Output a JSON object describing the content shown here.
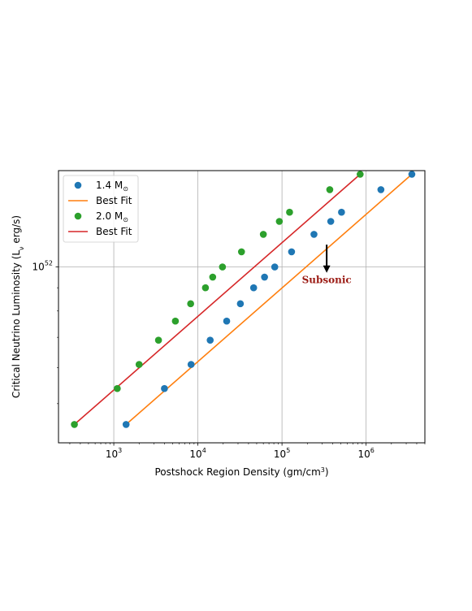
{
  "chart_data": {
    "type": "scatter",
    "title": "",
    "xlabel": {
      "main": "Postshock Region Density (gm/cm",
      "sup": "3",
      "tail": ")"
    },
    "ylabel": {
      "main": "Critical Neutrino Luminosity (L",
      "sub": "ν",
      "tail": " erg/s)"
    },
    "xscale": "log",
    "yscale": "log",
    "xlim": [
      220,
      5000000
    ],
    "ylim": [
      4.1e+51,
      1.63e+52
    ],
    "xticks": [
      {
        "value": 1000,
        "base": "10",
        "exp": "3"
      },
      {
        "value": 10000,
        "base": "10",
        "exp": "4"
      },
      {
        "value": 100000,
        "base": "10",
        "exp": "5"
      },
      {
        "value": 1000000,
        "base": "10",
        "exp": "6"
      }
    ],
    "yticks": [
      {
        "value": 1e+52,
        "base": "10",
        "exp": "52"
      }
    ],
    "grid": true,
    "legend_position": "top-left",
    "legend": [
      {
        "label": "1.4 M",
        "sub": "⊙",
        "kind": "marker",
        "color": "#1f77b4"
      },
      {
        "label": "Best Fit",
        "sub": "",
        "kind": "line",
        "color": "#ff7f0e"
      },
      {
        "label": "2.0 M",
        "sub": "⊙",
        "kind": "marker",
        "color": "#2ca02c"
      },
      {
        "label": "Best Fit",
        "sub": "",
        "kind": "line",
        "color": "#d62728"
      }
    ],
    "series": [
      {
        "name": "1.4 M⊙",
        "kind": "scatter",
        "color": "#1f77b4",
        "x": [
          1400,
          4000,
          8300,
          14000,
          22000,
          32000,
          46000,
          62000,
          82000,
          130000,
          240000,
          380000,
          510000,
          1500000,
          3500000
        ],
        "y": [
          4.5e+51,
          5.4e+51,
          6.1e+51,
          6.9e+51,
          7.6e+51,
          8.3e+51,
          9e+51,
          9.5e+51,
          1e+52,
          1.08e+52,
          1.18e+52,
          1.26e+52,
          1.32e+52,
          1.48e+52,
          1.6e+52
        ]
      },
      {
        "name": "Best Fit",
        "kind": "line",
        "color": "#ff7f0e",
        "x": [
          1400,
          3500000
        ],
        "y": [
          4.5e+51,
          1.6e+52
        ]
      },
      {
        "name": "2.0 M⊙",
        "kind": "scatter",
        "color": "#2ca02c",
        "x": [
          340,
          1100,
          2000,
          3400,
          5400,
          8200,
          12300,
          15000,
          19600,
          33000,
          60000,
          93000,
          123000,
          370000,
          850000
        ],
        "y": [
          4.5e+51,
          5.4e+51,
          6.1e+51,
          6.9e+51,
          7.6e+51,
          8.3e+51,
          9e+51,
          9.5e+51,
          1e+52,
          1.08e+52,
          1.18e+52,
          1.26e+52,
          1.32e+52,
          1.48e+52,
          1.6e+52
        ]
      },
      {
        "name": "Best Fit",
        "kind": "line",
        "color": "#d62728",
        "x": [
          340,
          850000
        ],
        "y": [
          4.5e+51,
          1.6e+52
        ]
      }
    ],
    "annotations": [
      {
        "text": "Subsonic",
        "x": 340000,
        "y": 9.6e+51,
        "arrow_from_y": 1.12e+52,
        "arrow_to_y": 9.75e+51,
        "color": "#9b1b14"
      }
    ]
  }
}
